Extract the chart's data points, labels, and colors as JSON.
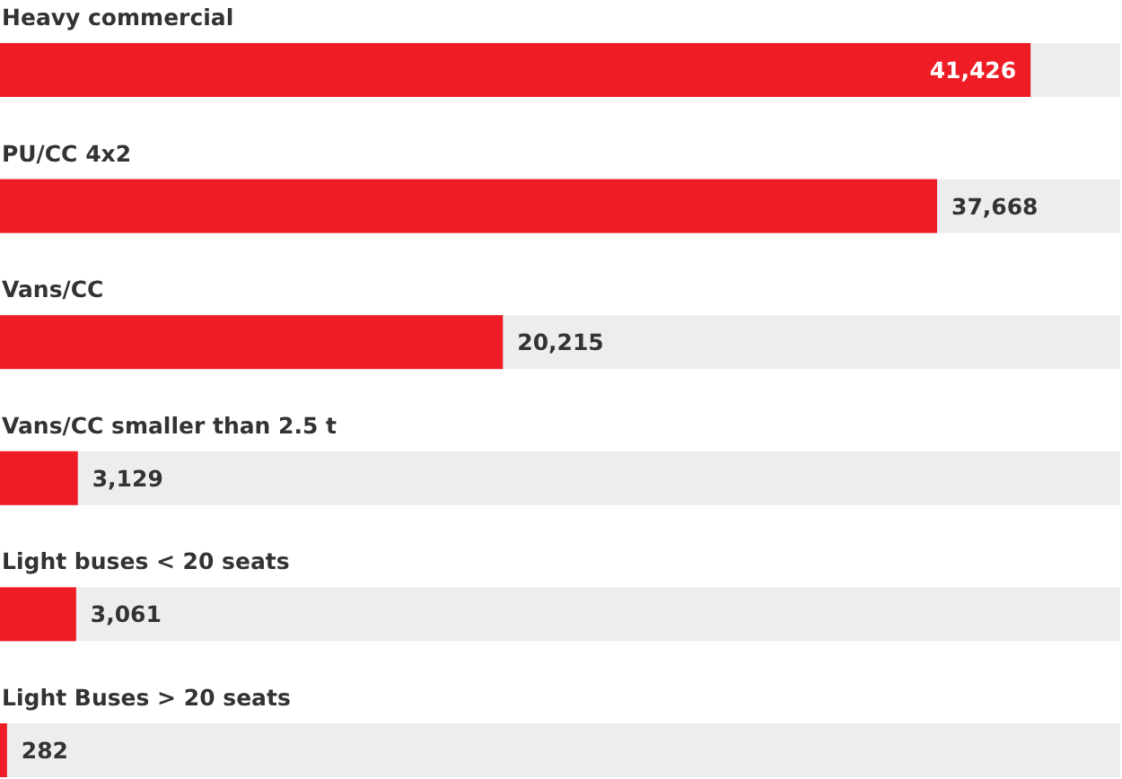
{
  "chart_data": {
    "type": "bar",
    "orientation": "horizontal",
    "categories": [
      "Heavy commercial",
      "PU/CC 4x2",
      "Vans/CC",
      "Vans/CC smaller than 2.5 t",
      "Light buses < 20 seats",
      "Light Buses > 20 seats"
    ],
    "values": [
      41426,
      37668,
      20215,
      3129,
      3061,
      282
    ],
    "color": "#ee1c25",
    "value_labels": [
      "41,426",
      "37,668",
      "20,215",
      "3,129",
      "3,061",
      "282"
    ]
  }
}
